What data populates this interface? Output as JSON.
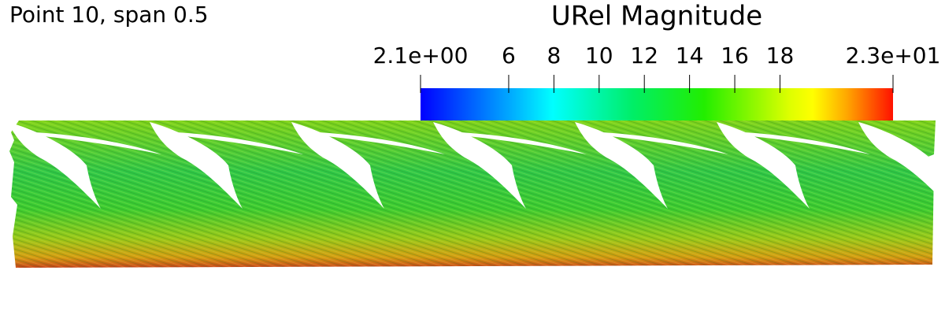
{
  "header": {
    "title": "Point 10, span 0.5"
  },
  "colorbar": {
    "title": "URel Magnitude",
    "range": [
      2.1,
      23
    ],
    "ticks": [
      {
        "value": 2.1,
        "label": "2.1e+00"
      },
      6,
      8,
      10,
      12,
      14,
      16,
      18,
      {
        "value": 23,
        "label": "2.3e+01"
      }
    ]
  }
}
